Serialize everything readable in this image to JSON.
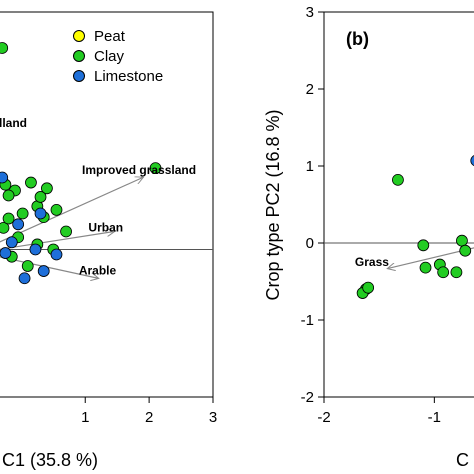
{
  "chart_data": [
    {
      "type": "scatter",
      "panel": "left",
      "xlabel": "C1 (35.8 %)",
      "ylabel": "",
      "xlim": [
        -0.35,
        3.0
      ],
      "ylim": [
        -2.6,
        2.75
      ],
      "x_ticks": [
        1,
        2,
        3
      ],
      "x_tick_labels": [
        "1",
        "2",
        "3"
      ],
      "y_ticks": [],
      "grid": false,
      "legend_position": "top-right",
      "legend": [
        {
          "name": "Peat",
          "color": "#ffff00"
        },
        {
          "name": "Clay",
          "color": "#22cc22"
        },
        {
          "name": "Limestone",
          "color": "#1e6fd9"
        }
      ],
      "series": [
        {
          "name": "Clay",
          "color": "#22cc22",
          "points": [
            [
              -0.3,
              2.25
            ],
            [
              2.1,
              0.58
            ],
            [
              -0.25,
              0.35
            ],
            [
              -0.1,
              0.27
            ],
            [
              0.15,
              0.38
            ],
            [
              0.4,
              0.3
            ],
            [
              -0.2,
              0.2
            ],
            [
              0.25,
              0.05
            ],
            [
              0.55,
              0.0
            ],
            [
              0.02,
              -0.05
            ],
            [
              0.35,
              -0.1
            ],
            [
              -0.28,
              -0.25
            ],
            [
              -0.05,
              -0.38
            ],
            [
              0.25,
              -0.48
            ],
            [
              -0.15,
              -0.65
            ],
            [
              0.1,
              -0.78
            ],
            [
              0.5,
              -0.55
            ],
            [
              0.7,
              -0.3
            ],
            [
              -0.2,
              -0.12
            ],
            [
              0.3,
              0.18
            ]
          ]
        },
        {
          "name": "Limestone",
          "color": "#1e6fd9",
          "points": [
            [
              -0.3,
              0.45
            ],
            [
              0.3,
              -0.05
            ],
            [
              -0.05,
              -0.2
            ],
            [
              0.22,
              -0.55
            ],
            [
              -0.25,
              -0.6
            ],
            [
              0.35,
              -0.85
            ],
            [
              0.05,
              -0.95
            ],
            [
              0.55,
              -0.62
            ],
            [
              -0.15,
              -0.45
            ]
          ]
        }
      ],
      "annotations": [
        {
          "text": "lland",
          "x": -0.35,
          "y": 1.15
        },
        {
          "text": "Improved grassland",
          "x": 0.95,
          "y": 0.5
        },
        {
          "text": "Urban",
          "x": 1.05,
          "y": -0.3
        },
        {
          "text": "Arable",
          "x": 0.9,
          "y": -0.9
        }
      ],
      "vectors": [
        {
          "to": [
            1.9,
            0.45
          ]
        },
        {
          "to": [
            1.45,
            -0.3
          ]
        },
        {
          "to": [
            1.2,
            -0.95
          ]
        }
      ],
      "reference_line_y": -0.55
    },
    {
      "type": "scatter",
      "panel": "right",
      "panel_label": "(b)",
      "xlabel": "C",
      "ylabel": "Crop type PC2 (16.8 %)",
      "xlim": [
        -2.0,
        -0.55
      ],
      "ylim": [
        -2.0,
        3.0
      ],
      "x_ticks": [
        -2,
        -1
      ],
      "x_tick_labels": [
        "-2",
        "-1"
      ],
      "y_ticks": [
        -2,
        -1,
        0,
        1,
        2,
        3
      ],
      "y_tick_labels": [
        "-2",
        "-1",
        "0",
        "1",
        "2",
        "3"
      ],
      "grid": false,
      "series": [
        {
          "name": "Clay",
          "color": "#22cc22",
          "points": [
            [
              -1.62,
              -0.6
            ],
            [
              -1.65,
              -0.65
            ],
            [
              -1.6,
              -0.58
            ],
            [
              -1.33,
              0.82
            ],
            [
              -1.1,
              -0.03
            ],
            [
              -1.08,
              -0.32
            ],
            [
              -0.95,
              -0.28
            ],
            [
              -0.92,
              -0.38
            ],
            [
              -0.8,
              -0.38
            ],
            [
              -0.75,
              0.03
            ],
            [
              -0.72,
              -0.1
            ]
          ]
        },
        {
          "name": "Limestone",
          "color": "#1e6fd9",
          "points": [
            [
              -0.62,
              1.07
            ]
          ]
        }
      ],
      "annotations": [
        {
          "text": "Grass",
          "x": -1.72,
          "y": -0.3
        }
      ],
      "vectors": [
        {
          "from": [
            -0.6,
            -0.05
          ],
          "to": [
            -1.42,
            -0.33
          ]
        }
      ],
      "reference_line_y": 0
    }
  ]
}
